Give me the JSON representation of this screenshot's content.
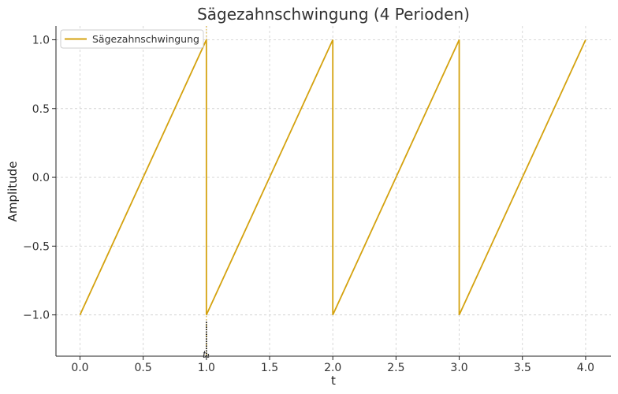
{
  "chart_data": {
    "type": "line",
    "title": "Sägezahnschwingung (4 Perioden)",
    "xlabel": "t",
    "ylabel": "Amplitude",
    "xlim": [
      -0.19,
      4.2
    ],
    "ylim": [
      -1.3,
      1.1
    ],
    "xticks": [
      0.0,
      0.5,
      1.0,
      1.5,
      2.0,
      2.5,
      3.0,
      3.5,
      4.0
    ],
    "xtick_labels": [
      "0.0",
      "0.5",
      "1.0",
      "1.5",
      "2.0",
      "2.5",
      "3.0",
      "3.5",
      "4.0"
    ],
    "yticks": [
      1.0,
      0.5,
      0.0,
      -0.5,
      -1.0
    ],
    "ytick_labels": [
      "1.0",
      "0.5",
      "0.0",
      "−0.5",
      "−1.0"
    ],
    "grid": true,
    "legend_position": "top-left",
    "series": [
      {
        "name": "Sägezahnschwingung",
        "color": "#d4a20f",
        "x": [
          0.0,
          1.0,
          1.0,
          2.0,
          2.0,
          3.0,
          3.0,
          4.0
        ],
        "y": [
          -1.0,
          1.0,
          -1.0,
          1.0,
          -1.0,
          1.0,
          -1.0,
          1.0
        ]
      }
    ],
    "annotations": [
      {
        "type": "vline",
        "x": 1.0,
        "color": "#d4a20f",
        "style": "dotted"
      },
      {
        "type": "vsegment",
        "x": 1.0,
        "y_from": -1.3,
        "y_to": -1.05,
        "color": "#000000",
        "style": "dotted"
      },
      {
        "type": "text",
        "x": 1.0,
        "text": "t₁",
        "position": "below-axis"
      }
    ]
  }
}
